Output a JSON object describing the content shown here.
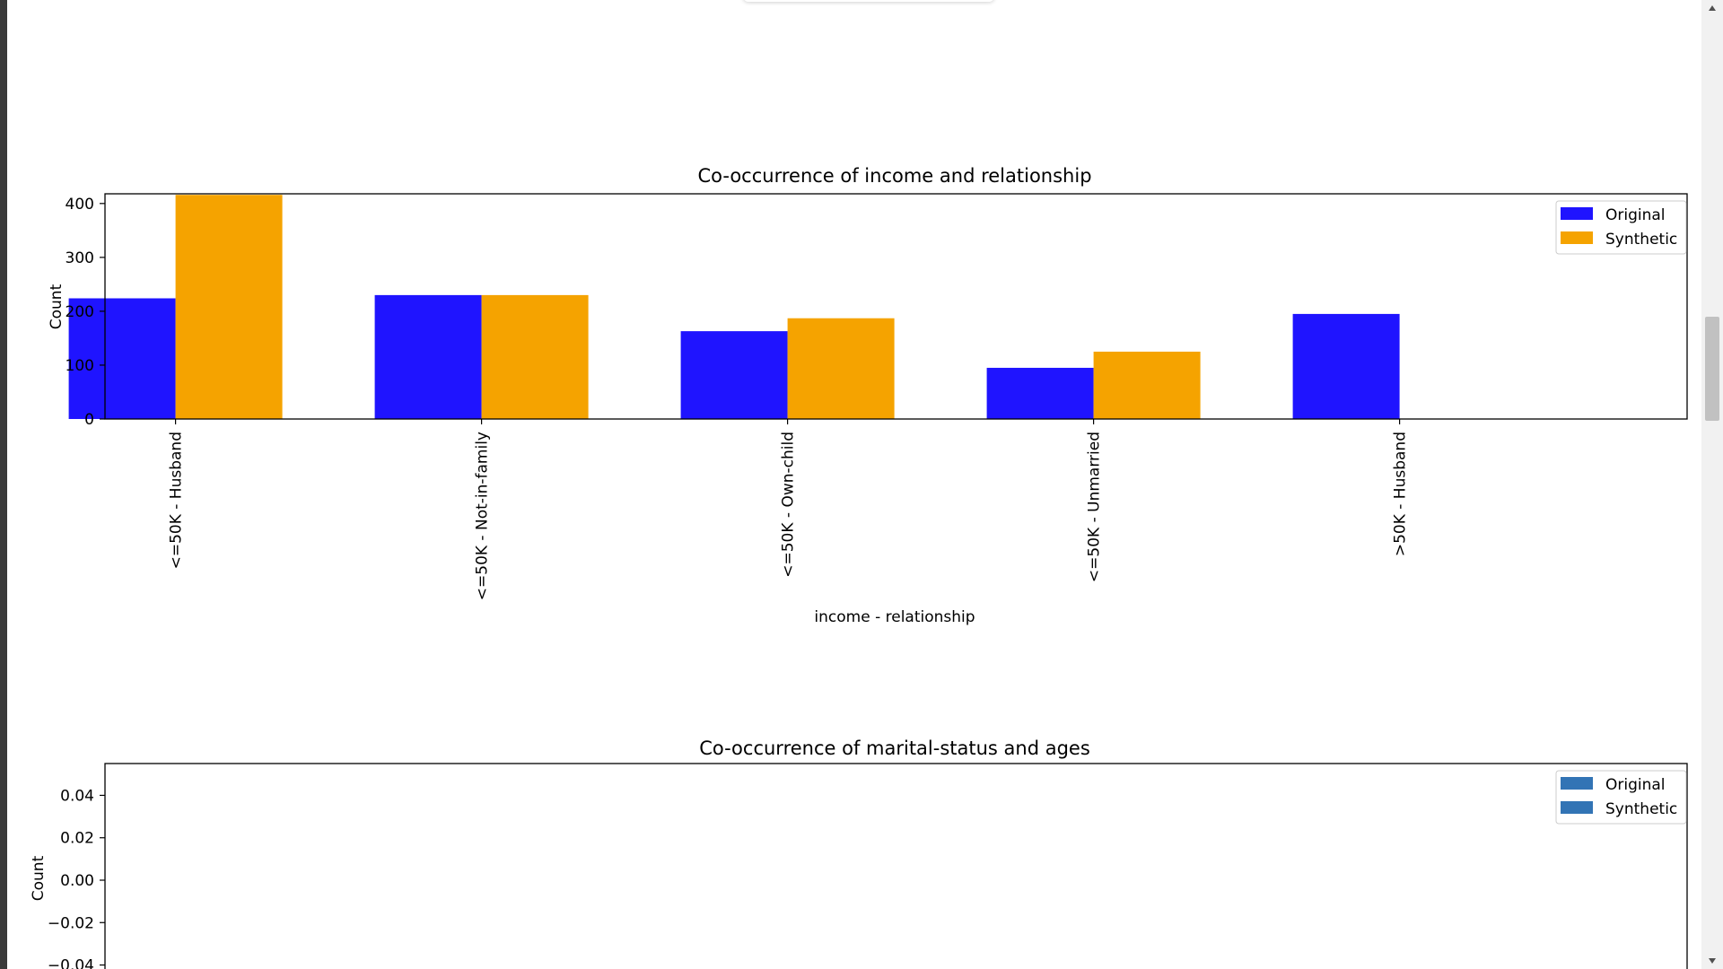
{
  "colors": {
    "original": "#1f14ff",
    "synthetic": "#f5a300",
    "original2": "#3274b5",
    "synthetic2": "#3274b5"
  },
  "scrollbar": {
    "up_icon": "triangle-up-icon",
    "down_icon": "triangle-down-icon"
  },
  "chart_data": [
    {
      "type": "bar",
      "title": "Co-occurrence of income and relationship",
      "xlabel": "income - relationship",
      "ylabel": "Count",
      "categories": [
        "<=50K - Husband",
        "<=50K - Not-in-family",
        "<=50K - Own-child",
        "<=50K - Unmarried",
        ">50K - Husband"
      ],
      "series": [
        {
          "name": "Original",
          "values": [
            224,
            230,
            163,
            95,
            195
          ]
        },
        {
          "name": "Synthetic",
          "values": [
            416,
            230,
            187,
            125,
            0
          ]
        }
      ],
      "ylim": [
        0,
        418
      ],
      "yticks": [
        "0",
        "100",
        "200",
        "300",
        "400"
      ],
      "grid": false,
      "legend": "top-right"
    },
    {
      "type": "bar",
      "title": "Co-occurrence of marital-status and ages",
      "xlabel": "",
      "ylabel": "Count",
      "categories": [],
      "series": [
        {
          "name": "Original",
          "values": []
        },
        {
          "name": "Synthetic",
          "values": []
        }
      ],
      "ylim": [
        -0.055,
        0.055
      ],
      "yticks": [
        "0.04",
        "0.02",
        "0.00",
        "−0.02",
        "−0.04"
      ],
      "grid": false,
      "legend": "top-right"
    }
  ]
}
